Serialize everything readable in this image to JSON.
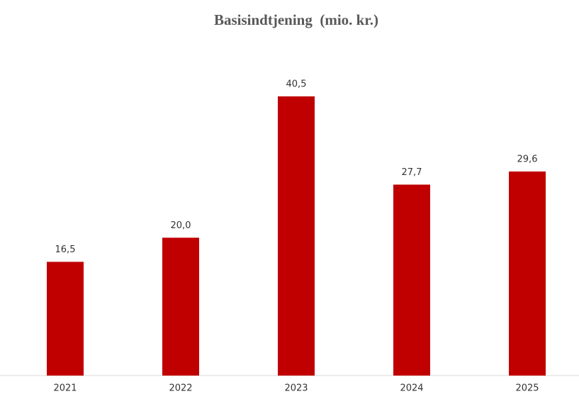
{
  "chart_data": {
    "type": "bar",
    "title": "Basisindtjening  (mio. kr.)",
    "categories": [
      "2021",
      "2022",
      "2023",
      "2024",
      "2025"
    ],
    "values": [
      16.5,
      20.0,
      40.5,
      27.7,
      29.6
    ],
    "value_labels": [
      "16,5",
      "20,0",
      "40,5",
      "27,7",
      "29,6"
    ],
    "color": "#c00000"
  }
}
